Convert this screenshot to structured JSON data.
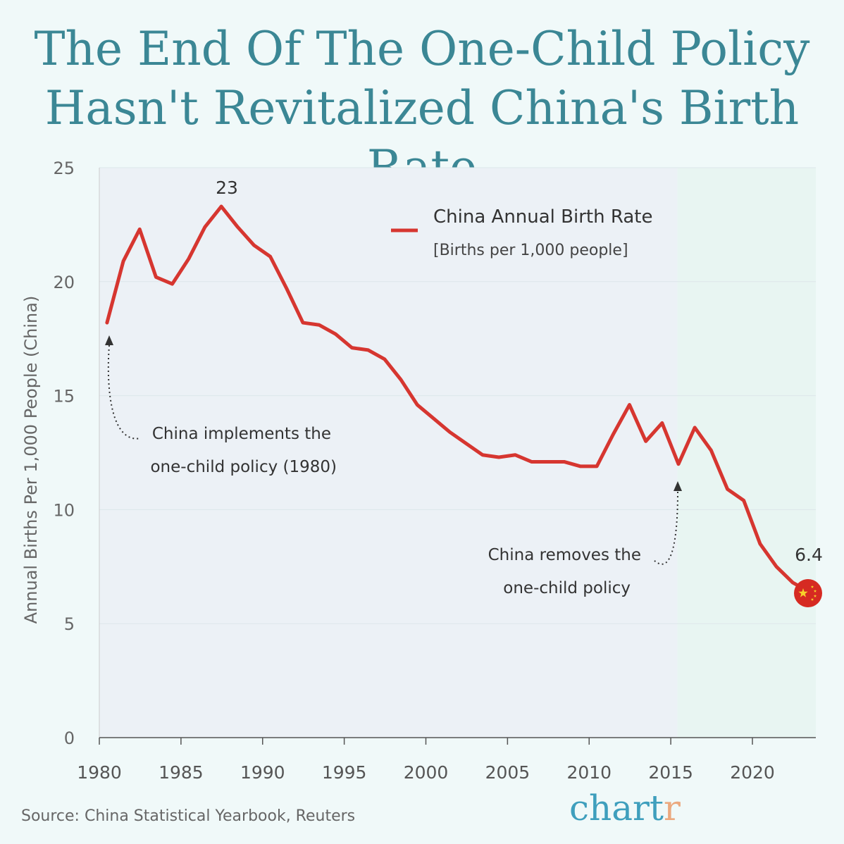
{
  "title_line1": "The End Of The One-Child Policy",
  "title_line2": "Hasn't Revitalized China's Birth Rate",
  "source": "Source: China Statistical Yearbook, Reuters",
  "logo": {
    "main": "chart",
    "accent": "r"
  },
  "colors": {
    "title": "#3b8795",
    "line": "#d63630",
    "pre_policy_shade": "#ecf1f6",
    "post_policy_shade": "#e8f5f2",
    "logo": "#3f9fbd",
    "logo_accent": "#eba97f"
  },
  "chart_data": {
    "type": "line",
    "ylabel": "Annual Births Per 1,000 People (China)",
    "xlabel": "",
    "ylim": [
      0,
      25
    ],
    "xlim": [
      1980,
      2024
    ],
    "yticks": [
      0,
      5,
      10,
      15,
      20,
      25
    ],
    "xticks": [
      1980,
      1985,
      1990,
      1995,
      2000,
      2005,
      2010,
      2015,
      2020
    ],
    "grid": "horizontal",
    "legend": {
      "placement": "top-center",
      "name": "China Annual Birth Rate",
      "subtitle": "[Births per 1,000 people]"
    },
    "series": [
      {
        "name": "China Annual Birth Rate",
        "x": [
          1980,
          1981,
          1982,
          1983,
          1984,
          1985,
          1986,
          1987,
          1988,
          1989,
          1990,
          1991,
          1992,
          1993,
          1994,
          1995,
          1996,
          1997,
          1998,
          1999,
          2000,
          2001,
          2002,
          2003,
          2004,
          2005,
          2006,
          2007,
          2008,
          2009,
          2010,
          2011,
          2012,
          2013,
          2014,
          2015,
          2016,
          2017,
          2018,
          2019,
          2020,
          2021,
          2022,
          2023
        ],
        "values": [
          18.2,
          20.9,
          22.3,
          20.2,
          19.9,
          21.0,
          22.4,
          23.3,
          22.4,
          21.6,
          21.1,
          19.7,
          18.2,
          18.1,
          17.7,
          17.1,
          17.0,
          16.6,
          15.7,
          14.6,
          14.0,
          13.4,
          12.9,
          12.4,
          12.3,
          12.4,
          12.1,
          12.1,
          12.1,
          11.9,
          11.9,
          13.3,
          14.6,
          13.0,
          13.8,
          12.0,
          13.6,
          12.6,
          10.9,
          10.4,
          8.5,
          7.5,
          6.8,
          6.4
        ]
      }
    ],
    "shaded_regions": [
      {
        "from": 1980,
        "to": 2015.4,
        "color": "#ecf1f6"
      },
      {
        "from": 2015.4,
        "to": 2024,
        "color": "#e8f5f2"
      }
    ],
    "annotations": [
      {
        "label": "23",
        "x": 1987,
        "y": 23.3
      },
      {
        "label": "6.4",
        "x": 2023,
        "y": 6.4
      },
      {
        "line1": "China implements the",
        "line2": "one-child policy (1980)",
        "x": 1980
      },
      {
        "line1": "China removes the",
        "line2": "one-child policy",
        "x": 2015
      }
    ],
    "end_marker": "china-flag-icon"
  }
}
